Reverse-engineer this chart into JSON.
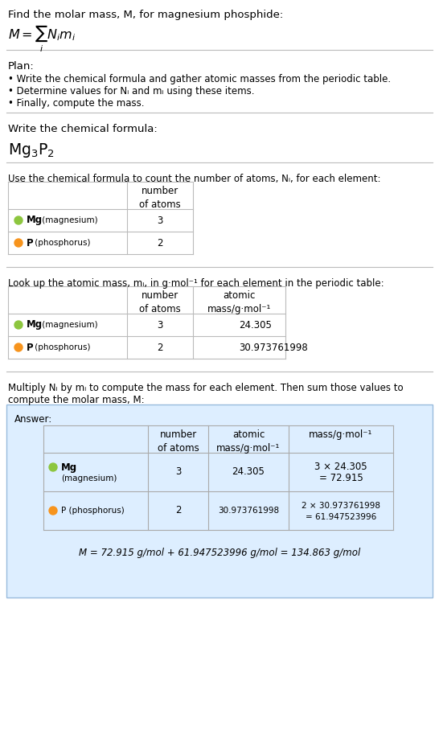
{
  "title_text": "Find the molar mass, M, for magnesium phosphide:",
  "plan_header": "Plan:",
  "plan_bullets": [
    "• Write the chemical formula and gather atomic masses from the periodic table.",
    "• Determine values for Nᵢ and mᵢ using these items.",
    "• Finally, compute the mass."
  ],
  "step1_header": "Write the chemical formula:",
  "step2_header": "Use the chemical formula to count the number of atoms, Nᵢ, for each element:",
  "step3_header": "Look up the atomic mass, mᵢ, in g·mol⁻¹ for each element in the periodic table:",
  "step4_line1": "Multiply Nᵢ by mᵢ to compute the mass for each element. Then sum those values to",
  "step4_line2": "compute the molar mass, M:",
  "answer_label": "Answer:",
  "mg_color": "#8dc63f",
  "p_color": "#f7941d",
  "final_answer": "M = 72.915 g/mol + 61.947523996 g/mol = 134.863 g/mol",
  "bg_color": "#ffffff",
  "answer_box_bg": "#ddeeff",
  "answer_box_border": "#99bbdd",
  "table_line_color": "#bbbbbb",
  "text_color": "#000000",
  "font_size": 9.5,
  "small_font": 8.5
}
